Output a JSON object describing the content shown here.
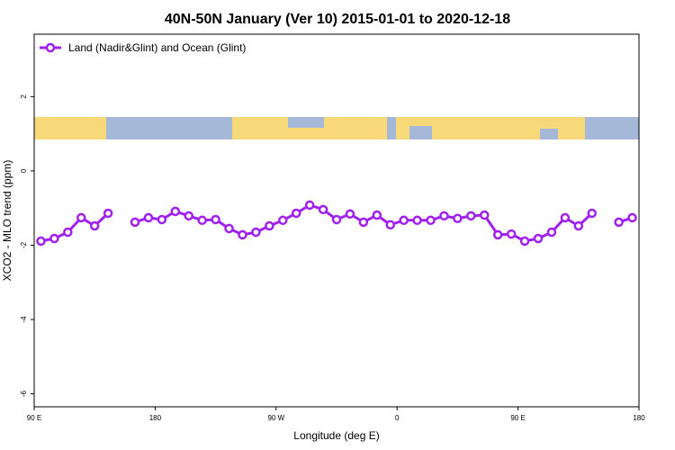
{
  "chart_data": {
    "type": "line",
    "title": "40N-50N January (Ver 10)   2015-01-01 to 2020-12-18",
    "x_label": "Longitude (deg E)",
    "y_label": "XCO2 - MLO trend (ppm)",
    "xlim": [
      90,
      540
    ],
    "xticks": [
      {
        "value": 90,
        "label": "90 E"
      },
      {
        "value": 180,
        "label": "180"
      },
      {
        "value": 270,
        "label": "90 W"
      },
      {
        "value": 360,
        "label": "0"
      },
      {
        "value": 450,
        "label": "90 E"
      },
      {
        "value": 540,
        "label": "180"
      }
    ],
    "ylim": [
      -6.35,
      3.68
    ],
    "yticks": [
      -6,
      -4,
      -2,
      0,
      2
    ],
    "legend": "top-left",
    "x": [
      95,
      105,
      115,
      125,
      135,
      145,
      155,
      165,
      175,
      185,
      195,
      205,
      215,
      225,
      235,
      245,
      255,
      265,
      275,
      285,
      295,
      305,
      315,
      325,
      335,
      345,
      355,
      365,
      375,
      385,
      395,
      405,
      415,
      425,
      435,
      445,
      455,
      465,
      475,
      485,
      495,
      505,
      515,
      525,
      535
    ],
    "series": [
      {
        "name": "Land (Nadir&Glint) and Ocean (Glint)",
        "color": "#a020f0",
        "values": [
          -1.89,
          -1.82,
          -1.65,
          -1.26,
          -1.48,
          -1.14,
          null,
          -1.38,
          -1.26,
          -1.31,
          -1.09,
          -1.21,
          -1.33,
          -1.31,
          -1.55,
          -1.72,
          -1.65,
          -1.48,
          -1.33,
          -1.14,
          -0.92,
          -1.04,
          -1.31,
          -1.16,
          -1.38,
          -1.19,
          -1.45,
          -1.33,
          -1.33,
          -1.33,
          -1.21,
          -1.28,
          -1.21,
          -1.19,
          -1.72,
          -1.7,
          -1.89,
          -1.82,
          -1.65,
          -1.26,
          -1.48,
          -1.14,
          null,
          -1.38,
          -1.26
        ]
      }
    ]
  }
}
